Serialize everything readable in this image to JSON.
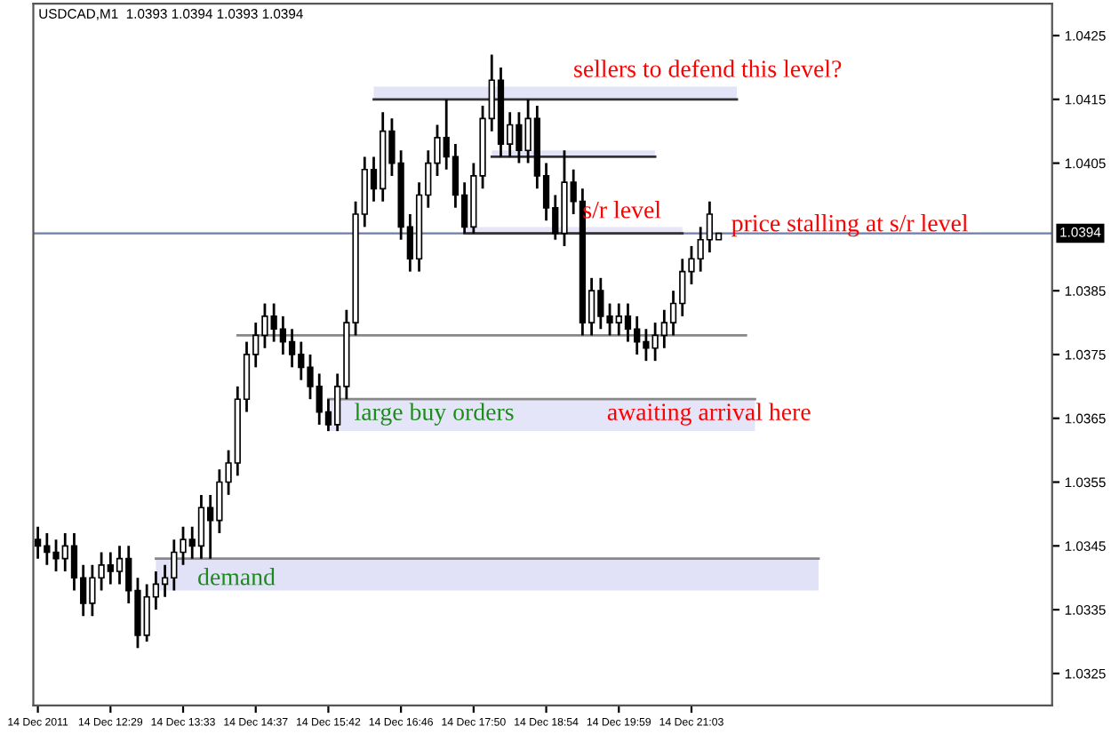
{
  "chart_data": {
    "type": "candlestick",
    "title": "USDCAD,M1  1.0393 1.0394 1.0393 1.0394",
    "ylim": [
      1.032,
      1.043
    ],
    "yticks": [
      1.0325,
      1.0335,
      1.0345,
      1.0355,
      1.0365,
      1.0375,
      1.0385,
      1.0405,
      1.0415,
      1.0425
    ],
    "grid": false,
    "categories": [
      "14 Dec 2011",
      null,
      null,
      null,
      null,
      null,
      null,
      null,
      "14 Dec 12:29",
      null,
      null,
      null,
      null,
      null,
      null,
      null,
      "14 Dec 13:33",
      null,
      null,
      null,
      null,
      null,
      null,
      null,
      "14 Dec 14:37",
      null,
      null,
      null,
      null,
      null,
      null,
      null,
      "14 Dec 15:42",
      null,
      null,
      null,
      null,
      null,
      null,
      null,
      "14 Dec 16:46",
      null,
      null,
      null,
      null,
      null,
      null,
      null,
      "14 Dec 17:50",
      null,
      null,
      null,
      null,
      null,
      null,
      null,
      "14 Dec 18:54",
      null,
      null,
      null,
      null,
      null,
      null,
      null,
      "14 Dec 19:59",
      null,
      null,
      null,
      null,
      null,
      null,
      null,
      "14 Dec 21:03",
      null,
      null,
      null,
      null,
      null,
      null,
      null,
      null,
      null,
      null,
      null,
      null,
      null,
      null
    ],
    "ohlc": [
      [
        1.0346,
        1.0348,
        1.0343,
        1.0345
      ],
      [
        1.0345,
        1.0347,
        1.0342,
        1.0344
      ],
      [
        1.0344,
        1.0346,
        1.0341,
        1.0343
      ],
      [
        1.0343,
        1.0347,
        1.0341,
        1.0345
      ],
      [
        1.0345,
        1.0347,
        1.0338,
        1.034
      ],
      [
        1.034,
        1.0342,
        1.0334,
        1.0336
      ],
      [
        1.0336,
        1.0342,
        1.0334,
        1.034
      ],
      [
        1.034,
        1.0344,
        1.0338,
        1.0342
      ],
      [
        1.0342,
        1.0344,
        1.0339,
        1.0341
      ],
      [
        1.0341,
        1.0345,
        1.0339,
        1.0343
      ],
      [
        1.0343,
        1.0345,
        1.0336,
        1.0338
      ],
      [
        1.0338,
        1.034,
        1.0329,
        1.0331
      ],
      [
        1.0331,
        1.0339,
        1.033,
        1.0337
      ],
      [
        1.0337,
        1.0341,
        1.0335,
        1.0339
      ],
      [
        1.0339,
        1.0342,
        1.0337,
        1.034
      ],
      [
        1.034,
        1.0346,
        1.0338,
        1.0344
      ],
      [
        1.0344,
        1.0348,
        1.0342,
        1.0346
      ],
      [
        1.0346,
        1.0348,
        1.0343,
        1.0345
      ],
      [
        1.0345,
        1.0353,
        1.0343,
        1.0351
      ],
      [
        1.0351,
        1.0353,
        1.0343,
        1.0349
      ],
      [
        1.0349,
        1.0357,
        1.0347,
        1.0355
      ],
      [
        1.0355,
        1.036,
        1.0353,
        1.0358
      ],
      [
        1.0358,
        1.037,
        1.0356,
        1.0368
      ],
      [
        1.0368,
        1.0377,
        1.0366,
        1.0375
      ],
      [
        1.0375,
        1.038,
        1.0373,
        1.0378
      ],
      [
        1.0378,
        1.0383,
        1.0376,
        1.0381
      ],
      [
        1.0381,
        1.0383,
        1.0377,
        1.0379
      ],
      [
        1.0379,
        1.0381,
        1.0375,
        1.0377
      ],
      [
        1.0377,
        1.0379,
        1.0373,
        1.0375
      ],
      [
        1.0375,
        1.0377,
        1.0371,
        1.0373
      ],
      [
        1.0373,
        1.0375,
        1.0368,
        1.037
      ],
      [
        1.037,
        1.0372,
        1.0364,
        1.0366
      ],
      [
        1.0366,
        1.0368,
        1.0363,
        1.0364
      ],
      [
        1.0364,
        1.0372,
        1.0363,
        1.037
      ],
      [
        1.037,
        1.0382,
        1.0368,
        1.038
      ],
      [
        1.038,
        1.0399,
        1.0378,
        1.0397
      ],
      [
        1.0397,
        1.0406,
        1.0395,
        1.0404
      ],
      [
        1.0404,
        1.0406,
        1.0399,
        1.0401
      ],
      [
        1.0401,
        1.0413,
        1.0399,
        1.041
      ],
      [
        1.041,
        1.0412,
        1.0403,
        1.0405
      ],
      [
        1.0405,
        1.0407,
        1.0393,
        1.0395
      ],
      [
        1.0395,
        1.0397,
        1.0388,
        1.039
      ],
      [
        1.039,
        1.0402,
        1.0388,
        1.04
      ],
      [
        1.04,
        1.0407,
        1.0398,
        1.0405
      ],
      [
        1.0405,
        1.0411,
        1.0403,
        1.0409
      ],
      [
        1.0409,
        1.0415,
        1.0404,
        1.0406
      ],
      [
        1.0406,
        1.0408,
        1.0398,
        1.04
      ],
      [
        1.04,
        1.0402,
        1.0394,
        1.0395
      ],
      [
        1.0395,
        1.0405,
        1.0394,
        1.0403
      ],
      [
        1.0403,
        1.0414,
        1.0401,
        1.0412
      ],
      [
        1.0412,
        1.0422,
        1.041,
        1.0418
      ],
      [
        1.0418,
        1.042,
        1.0406,
        1.0408
      ],
      [
        1.0408,
        1.0413,
        1.0406,
        1.0411
      ],
      [
        1.0411,
        1.0413,
        1.0405,
        1.0407
      ],
      [
        1.0407,
        1.0415,
        1.0405,
        1.0412
      ],
      [
        1.0412,
        1.0414,
        1.0401,
        1.0403
      ],
      [
        1.0403,
        1.0405,
        1.0396,
        1.0398
      ],
      [
        1.0398,
        1.04,
        1.0393,
        1.0394
      ],
      [
        1.0394,
        1.0407,
        1.0392,
        1.0402
      ],
      [
        1.0402,
        1.0404,
        1.0397,
        1.0399
      ],
      [
        1.0399,
        1.0401,
        1.0378,
        1.038
      ],
      [
        1.038,
        1.0387,
        1.0378,
        1.0385
      ],
      [
        1.0385,
        1.0387,
        1.0379,
        1.0381
      ],
      [
        1.0381,
        1.0383,
        1.0378,
        1.038
      ],
      [
        1.038,
        1.0383,
        1.0378,
        1.0381
      ],
      [
        1.0381,
        1.0383,
        1.0377,
        1.0379
      ],
      [
        1.0379,
        1.0381,
        1.0375,
        1.0377
      ],
      [
        1.0377,
        1.0379,
        1.0374,
        1.0376
      ],
      [
        1.0376,
        1.038,
        1.0374,
        1.0378
      ],
      [
        1.0378,
        1.0382,
        1.0376,
        1.038
      ],
      [
        1.038,
        1.0385,
        1.0378,
        1.0383
      ],
      [
        1.0383,
        1.039,
        1.0381,
        1.0388
      ],
      [
        1.0388,
        1.0392,
        1.0386,
        1.039
      ],
      [
        1.039,
        1.0395,
        1.0388,
        1.0393
      ],
      [
        1.0393,
        1.0399,
        1.0391,
        1.0397
      ],
      [
        1.0393,
        1.0394,
        1.0393,
        1.0394
      ],
      null,
      null,
      null,
      null,
      null,
      null,
      null,
      null,
      null,
      null,
      null
    ],
    "ref_lines": [
      {
        "axis": "y",
        "value": 1.0394,
        "label": "1.0394",
        "color": "#6b7fa8"
      }
    ],
    "series": [
      {
        "type": "line",
        "color": "#333333",
        "values": [
          null,
          null,
          null,
          null,
          null,
          null,
          null,
          null,
          null,
          null,
          null,
          null,
          null,
          null,
          null,
          null,
          null,
          null,
          null,
          null,
          null,
          null,
          null,
          null,
          null,
          null,
          null,
          null,
          null,
          null,
          null,
          null,
          null,
          null,
          null,
          null,
          null,
          1.0415,
          1.0415,
          1.0415,
          1.0415,
          1.0415,
          1.0415,
          1.0415,
          1.0415,
          1.0415,
          1.0415,
          1.0415,
          1.0415,
          1.0415,
          1.0415,
          1.0415,
          1.0415,
          1.0415,
          1.0415,
          1.0415,
          1.0415,
          1.0415,
          1.0415,
          1.0415,
          1.0415,
          1.0415,
          1.0415,
          1.0415,
          1.0415,
          1.0415,
          1.0415,
          1.0415,
          1.0415,
          1.0415,
          1.0415,
          1.0415,
          1.0415,
          1.0415,
          1.0415,
          1.0415,
          1.0415,
          1.0415,
          null,
          null,
          null,
          null,
          null,
          null,
          null,
          null,
          null
        ],
        "lower": [
          null,
          null,
          null,
          null,
          null,
          null,
          null,
          null,
          null,
          null,
          null,
          null,
          null,
          null,
          null,
          null,
          null,
          null,
          null,
          null,
          null,
          null,
          null,
          null,
          null,
          null,
          null,
          null,
          null,
          null,
          null,
          null,
          null,
          null,
          null,
          null,
          null,
          1.0415,
          1.0415,
          1.0415,
          1.0415,
          1.0415,
          1.0415,
          1.0415,
          1.0415,
          1.0415,
          1.0415,
          1.0415,
          1.0415,
          1.0415,
          1.0415,
          1.0415,
          1.0415,
          1.0415,
          1.0415,
          1.0415,
          1.0415,
          1.0415,
          1.0415,
          1.0415,
          1.0415,
          1.0415,
          1.0415,
          1.0415,
          1.0415,
          1.0415,
          1.0415,
          1.0415,
          1.0415,
          1.0415,
          1.0415,
          1.0415,
          1.0415,
          1.0415,
          1.0415,
          1.0415,
          1.0415,
          1.0415,
          null,
          null,
          null,
          null,
          null,
          null,
          null,
          null,
          null
        ],
        "upper": [
          null,
          null,
          null,
          null,
          null,
          null,
          null,
          null,
          null,
          null,
          null,
          null,
          null,
          null,
          null,
          null,
          null,
          null,
          null,
          null,
          null,
          null,
          null,
          null,
          null,
          null,
          null,
          null,
          null,
          null,
          null,
          null,
          null,
          null,
          null,
          null,
          null,
          1.0417,
          1.0417,
          1.0417,
          1.0417,
          1.0417,
          1.0417,
          1.0417,
          1.0417,
          1.0417,
          1.0417,
          1.0417,
          1.0417,
          1.0417,
          1.0417,
          1.0417,
          1.0417,
          1.0417,
          1.0417,
          1.0417,
          1.0417,
          1.0417,
          1.0417,
          1.0417,
          1.0417,
          1.0417,
          1.0417,
          1.0417,
          1.0417,
          1.0417,
          1.0417,
          1.0417,
          1.0417,
          1.0417,
          1.0417,
          1.0417,
          1.0417,
          1.0417,
          1.0417,
          1.0417,
          1.0417,
          1.0417,
          null,
          null,
          null,
          null,
          null,
          null,
          null,
          null,
          null
        ]
      },
      {
        "type": "line",
        "color": "#333333",
        "values": [
          null,
          null,
          null,
          null,
          null,
          null,
          null,
          null,
          null,
          null,
          null,
          null,
          null,
          null,
          null,
          null,
          null,
          null,
          null,
          null,
          null,
          null,
          null,
          null,
          null,
          null,
          null,
          null,
          null,
          null,
          null,
          null,
          null,
          null,
          null,
          null,
          null,
          null,
          null,
          null,
          null,
          null,
          null,
          null,
          null,
          null,
          null,
          null,
          null,
          null,
          1.0406,
          1.0406,
          1.0406,
          1.0406,
          1.0406,
          1.0406,
          1.0406,
          1.0406,
          1.0406,
          1.0406,
          1.0406,
          1.0406,
          1.0406,
          1.0406,
          1.0406,
          1.0406,
          1.0406,
          1.0406,
          1.0406,
          null,
          null,
          null,
          null,
          null,
          null,
          null,
          null,
          null,
          null,
          null,
          null,
          null,
          null,
          null,
          null,
          null,
          null
        ],
        "lower": [
          null,
          null,
          null,
          null,
          null,
          null,
          null,
          null,
          null,
          null,
          null,
          null,
          null,
          null,
          null,
          null,
          null,
          null,
          null,
          null,
          null,
          null,
          null,
          null,
          null,
          null,
          null,
          null,
          null,
          null,
          null,
          null,
          null,
          null,
          null,
          null,
          null,
          null,
          null,
          null,
          null,
          null,
          null,
          null,
          null,
          null,
          null,
          null,
          null,
          null,
          1.0406,
          1.0406,
          1.0406,
          1.0406,
          1.0406,
          1.0406,
          1.0406,
          1.0406,
          1.0406,
          1.0406,
          1.0406,
          1.0406,
          1.0406,
          1.0406,
          1.0406,
          1.0406,
          1.0406,
          1.0406,
          1.0406,
          null,
          null,
          null,
          null,
          null,
          null,
          null,
          null,
          null,
          null,
          null,
          null,
          null,
          null,
          null,
          null,
          null,
          null
        ],
        "upper": [
          null,
          null,
          null,
          null,
          null,
          null,
          null,
          null,
          null,
          null,
          null,
          null,
          null,
          null,
          null,
          null,
          null,
          null,
          null,
          null,
          null,
          null,
          null,
          null,
          null,
          null,
          null,
          null,
          null,
          null,
          null,
          null,
          null,
          null,
          null,
          null,
          null,
          null,
          null,
          null,
          null,
          null,
          null,
          null,
          null,
          null,
          null,
          null,
          null,
          null,
          1.0407,
          1.0407,
          1.0407,
          1.0407,
          1.0407,
          1.0407,
          1.0407,
          1.0407,
          1.0407,
          1.0407,
          1.0407,
          1.0407,
          1.0407,
          1.0407,
          1.0407,
          1.0407,
          1.0407,
          1.0407,
          1.0407,
          null,
          null,
          null,
          null,
          null,
          null,
          null,
          null,
          null,
          null,
          null,
          null,
          null,
          null,
          null,
          null,
          null,
          null
        ]
      },
      {
        "type": "line",
        "color": "#333333",
        "values": [
          null,
          null,
          null,
          null,
          null,
          null,
          null,
          null,
          null,
          null,
          null,
          null,
          null,
          null,
          null,
          null,
          null,
          null,
          null,
          null,
          null,
          null,
          null,
          null,
          null,
          null,
          null,
          null,
          null,
          null,
          null,
          null,
          null,
          null,
          null,
          null,
          null,
          null,
          null,
          null,
          null,
          null,
          null,
          null,
          null,
          null,
          null,
          1.0394,
          1.0394,
          1.0394,
          1.0394,
          1.0394,
          1.0394,
          1.0394,
          1.0394,
          1.0394,
          1.0394,
          1.0394,
          1.0394,
          1.0394,
          1.0394,
          1.0394,
          1.0394,
          1.0394,
          1.0394,
          1.0394,
          1.0394,
          1.0394,
          1.0394,
          1.0394,
          1.0394,
          1.0394,
          null,
          null,
          null,
          null,
          null,
          null,
          null,
          null,
          null,
          null,
          null,
          null,
          null,
          null,
          null
        ],
        "lower": [
          null,
          null,
          null,
          null,
          null,
          null,
          null,
          null,
          null,
          null,
          null,
          null,
          null,
          null,
          null,
          null,
          null,
          null,
          null,
          null,
          null,
          null,
          null,
          null,
          null,
          null,
          null,
          null,
          null,
          null,
          null,
          null,
          null,
          null,
          null,
          null,
          null,
          null,
          null,
          null,
          null,
          null,
          null,
          null,
          null,
          null,
          null,
          1.0394,
          1.0394,
          1.0394,
          1.0394,
          1.0394,
          1.0394,
          1.0394,
          1.0394,
          1.0394,
          1.0394,
          1.0394,
          1.0394,
          1.0394,
          1.0394,
          1.0394,
          1.0394,
          1.0394,
          1.0394,
          1.0394,
          1.0394,
          1.0394,
          1.0394,
          1.0394,
          1.0394,
          1.0394,
          null,
          null,
          null,
          null,
          null,
          null,
          null,
          null,
          null,
          null,
          null,
          null,
          null,
          null,
          null
        ],
        "upper": [
          null,
          null,
          null,
          null,
          null,
          null,
          null,
          null,
          null,
          null,
          null,
          null,
          null,
          null,
          null,
          null,
          null,
          null,
          null,
          null,
          null,
          null,
          null,
          null,
          null,
          null,
          null,
          null,
          null,
          null,
          null,
          null,
          null,
          null,
          null,
          null,
          null,
          null,
          null,
          null,
          null,
          null,
          null,
          null,
          null,
          null,
          null,
          1.0395,
          1.0395,
          1.0395,
          1.0395,
          1.0395,
          1.0395,
          1.0395,
          1.0395,
          1.0395,
          1.0395,
          1.0395,
          1.0395,
          1.0395,
          1.0395,
          1.0395,
          1.0395,
          1.0395,
          1.0395,
          1.0395,
          1.0395,
          1.0395,
          1.0395,
          1.0395,
          1.0395,
          1.0395,
          null,
          null,
          null,
          null,
          null,
          null,
          null,
          null,
          null,
          null,
          null,
          null,
          null,
          null,
          null
        ]
      },
      {
        "type": "line",
        "color": "#888888",
        "values": [
          null,
          null,
          null,
          null,
          null,
          null,
          null,
          null,
          null,
          null,
          null,
          null,
          null,
          null,
          null,
          null,
          null,
          null,
          null,
          null,
          null,
          null,
          1.0378,
          1.0378,
          1.0378,
          1.0378,
          1.0378,
          1.0378,
          1.0378,
          1.0378,
          1.0378,
          1.0378,
          1.0378,
          1.0378,
          1.0378,
          1.0378,
          1.0378,
          1.0378,
          1.0378,
          1.0378,
          1.0378,
          1.0378,
          1.0378,
          1.0378,
          1.0378,
          1.0378,
          1.0378,
          1.0378,
          1.0378,
          1.0378,
          1.0378,
          1.0378,
          1.0378,
          1.0378,
          1.0378,
          1.0378,
          1.0378,
          1.0378,
          1.0378,
          1.0378,
          1.0378,
          1.0378,
          1.0378,
          1.0378,
          1.0378,
          1.0378,
          1.0378,
          1.0378,
          1.0378,
          1.0378,
          1.0378,
          1.0378,
          1.0378,
          1.0378,
          1.0378,
          1.0378,
          1.0378,
          1.0378,
          1.0378,
          null,
          null,
          null,
          null,
          null,
          null,
          null,
          null
        ]
      },
      {
        "type": "line",
        "color": "#888888",
        "values": [
          null,
          null,
          null,
          null,
          null,
          null,
          null,
          null,
          null,
          null,
          null,
          null,
          null,
          null,
          null,
          null,
          null,
          null,
          null,
          null,
          null,
          null,
          null,
          null,
          null,
          null,
          null,
          null,
          null,
          null,
          null,
          null,
          1.0368,
          1.0368,
          1.0368,
          1.0368,
          1.0368,
          1.0368,
          1.0368,
          1.0368,
          1.0368,
          1.0368,
          1.0368,
          1.0368,
          1.0368,
          1.0368,
          1.0368,
          1.0368,
          1.0368,
          1.0368,
          1.0368,
          1.0368,
          1.0368,
          1.0368,
          1.0368,
          1.0368,
          1.0368,
          1.0368,
          1.0368,
          1.0368,
          1.0368,
          1.0368,
          1.0368,
          1.0368,
          1.0368,
          1.0368,
          1.0368,
          1.0368,
          1.0368,
          1.0368,
          1.0368,
          1.0368,
          1.0368,
          1.0368,
          1.0368,
          1.0368,
          1.0368,
          1.0368,
          1.0368,
          1.0368,
          null,
          null,
          null,
          null,
          null,
          null,
          null
        ],
        "lower": [
          null,
          null,
          null,
          null,
          null,
          null,
          null,
          null,
          null,
          null,
          null,
          null,
          null,
          null,
          null,
          null,
          null,
          null,
          null,
          null,
          null,
          null,
          null,
          null,
          null,
          null,
          null,
          null,
          null,
          null,
          null,
          null,
          1.0363,
          1.0363,
          1.0363,
          1.0363,
          1.0363,
          1.0363,
          1.0363,
          1.0363,
          1.0363,
          1.0363,
          1.0363,
          1.0363,
          1.0363,
          1.0363,
          1.0363,
          1.0363,
          1.0363,
          1.0363,
          1.0363,
          1.0363,
          1.0363,
          1.0363,
          1.0363,
          1.0363,
          1.0363,
          1.0363,
          1.0363,
          1.0363,
          1.0363,
          1.0363,
          1.0363,
          1.0363,
          1.0363,
          1.0363,
          1.0363,
          1.0363,
          1.0363,
          1.0363,
          1.0363,
          1.0363,
          1.0363,
          1.0363,
          1.0363,
          1.0363,
          1.0363,
          1.0363,
          1.0363,
          1.0363,
          null,
          null,
          null,
          null,
          null,
          null,
          null
        ],
        "upper": [
          null,
          null,
          null,
          null,
          null,
          null,
          null,
          null,
          null,
          null,
          null,
          null,
          null,
          null,
          null,
          null,
          null,
          null,
          null,
          null,
          null,
          null,
          null,
          null,
          null,
          null,
          null,
          null,
          null,
          null,
          null,
          null,
          1.0368,
          1.0368,
          1.0368,
          1.0368,
          1.0368,
          1.0368,
          1.0368,
          1.0368,
          1.0368,
          1.0368,
          1.0368,
          1.0368,
          1.0368,
          1.0368,
          1.0368,
          1.0368,
          1.0368,
          1.0368,
          1.0368,
          1.0368,
          1.0368,
          1.0368,
          1.0368,
          1.0368,
          1.0368,
          1.0368,
          1.0368,
          1.0368,
          1.0368,
          1.0368,
          1.0368,
          1.0368,
          1.0368,
          1.0368,
          1.0368,
          1.0368,
          1.0368,
          1.0368,
          1.0368,
          1.0368,
          1.0368,
          1.0368,
          1.0368,
          1.0368,
          1.0368,
          1.0368,
          1.0368,
          1.0368,
          null,
          null,
          null,
          null,
          null,
          null,
          null
        ]
      },
      {
        "type": "line",
        "color": "#888888",
        "values": [
          null,
          null,
          null,
          null,
          null,
          null,
          null,
          null,
          null,
          null,
          null,
          null,
          null,
          1.0343,
          1.0343,
          1.0343,
          1.0343,
          1.0343,
          1.0343,
          1.0343,
          1.0343,
          1.0343,
          1.0343,
          1.0343,
          1.0343,
          1.0343,
          1.0343,
          1.0343,
          1.0343,
          1.0343,
          1.0343,
          1.0343,
          1.0343,
          1.0343,
          1.0343,
          1.0343,
          1.0343,
          1.0343,
          1.0343,
          1.0343,
          1.0343,
          1.0343,
          1.0343,
          1.0343,
          1.0343,
          1.0343,
          1.0343,
          1.0343,
          1.0343,
          1.0343,
          1.0343,
          1.0343,
          1.0343,
          1.0343,
          1.0343,
          1.0343,
          1.0343,
          1.0343,
          1.0343,
          1.0343,
          1.0343,
          1.0343,
          1.0343,
          1.0343,
          1.0343,
          1.0343,
          1.0343,
          1.0343,
          1.0343,
          1.0343,
          1.0343,
          1.0343,
          1.0343,
          1.0343,
          1.0343,
          1.0343,
          1.0343,
          1.0343,
          1.0343,
          1.0343,
          1.0343,
          1.0343,
          1.0343,
          1.0343,
          1.0343,
          1.0343,
          1.0343
        ],
        "lower": [
          null,
          null,
          null,
          null,
          null,
          null,
          null,
          null,
          null,
          null,
          null,
          null,
          null,
          1.0338,
          1.0338,
          1.0338,
          1.0338,
          1.0338,
          1.0338,
          1.0338,
          1.0338,
          1.0338,
          1.0338,
          1.0338,
          1.0338,
          1.0338,
          1.0338,
          1.0338,
          1.0338,
          1.0338,
          1.0338,
          1.0338,
          1.0338,
          1.0338,
          1.0338,
          1.0338,
          1.0338,
          1.0338,
          1.0338,
          1.0338,
          1.0338,
          1.0338,
          1.0338,
          1.0338,
          1.0338,
          1.0338,
          1.0338,
          1.0338,
          1.0338,
          1.0338,
          1.0338,
          1.0338,
          1.0338,
          1.0338,
          1.0338,
          1.0338,
          1.0338,
          1.0338,
          1.0338,
          1.0338,
          1.0338,
          1.0338,
          1.0338,
          1.0338,
          1.0338,
          1.0338,
          1.0338,
          1.0338,
          1.0338,
          1.0338,
          1.0338,
          1.0338,
          1.0338,
          1.0338,
          1.0338,
          1.0338,
          1.0338,
          1.0338,
          1.0338,
          1.0338,
          1.0338,
          1.0338,
          1.0338,
          1.0338,
          1.0338,
          1.0338,
          1.0338
        ],
        "upper": [
          null,
          null,
          null,
          null,
          null,
          null,
          null,
          null,
          null,
          null,
          null,
          null,
          null,
          1.0343,
          1.0343,
          1.0343,
          1.0343,
          1.0343,
          1.0343,
          1.0343,
          1.0343,
          1.0343,
          1.0343,
          1.0343,
          1.0343,
          1.0343,
          1.0343,
          1.0343,
          1.0343,
          1.0343,
          1.0343,
          1.0343,
          1.0343,
          1.0343,
          1.0343,
          1.0343,
          1.0343,
          1.0343,
          1.0343,
          1.0343,
          1.0343,
          1.0343,
          1.0343,
          1.0343,
          1.0343,
          1.0343,
          1.0343,
          1.0343,
          1.0343,
          1.0343,
          1.0343,
          1.0343,
          1.0343,
          1.0343,
          1.0343,
          1.0343,
          1.0343,
          1.0343,
          1.0343,
          1.0343,
          1.0343,
          1.0343,
          1.0343,
          1.0343,
          1.0343,
          1.0343,
          1.0343,
          1.0343,
          1.0343,
          1.0343,
          1.0343,
          1.0343,
          1.0343,
          1.0343,
          1.0343,
          1.0343,
          1.0343,
          1.0343,
          1.0343,
          1.0343,
          1.0343,
          1.0343,
          1.0343,
          1.0343,
          1.0343,
          1.0343,
          1.0343
        ]
      }
    ],
    "annotations": [
      "sellers to defend this level?",
      "s/r level",
      "price stalling at s/r level",
      "large buy orders",
      "awaiting arrival here",
      "demand"
    ]
  }
}
